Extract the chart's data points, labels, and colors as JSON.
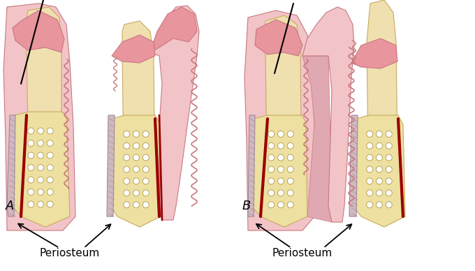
{
  "bg_color": "#ffffff",
  "pink_gum": "#e8959d",
  "pink_light": "#f2c4c8",
  "pink_medium": "#e0a8b0",
  "bone_spongy": "#d8c87a",
  "bone_light": "#ede0a0",
  "red_pdl": "#9b0000",
  "tooth_cream": "#f0e0b0",
  "tooth_outline": "#c8aa60",
  "outline_pink": "#c87880",
  "outline_dark": "#b06878",
  "perio_color": "#d0b8c0",
  "perio_outline": "#a08898",
  "periosteum_label": "Periosteum",
  "label_A": "A",
  "label_B": "B",
  "label_fontsize": 13,
  "periosteum_fontsize": 11
}
